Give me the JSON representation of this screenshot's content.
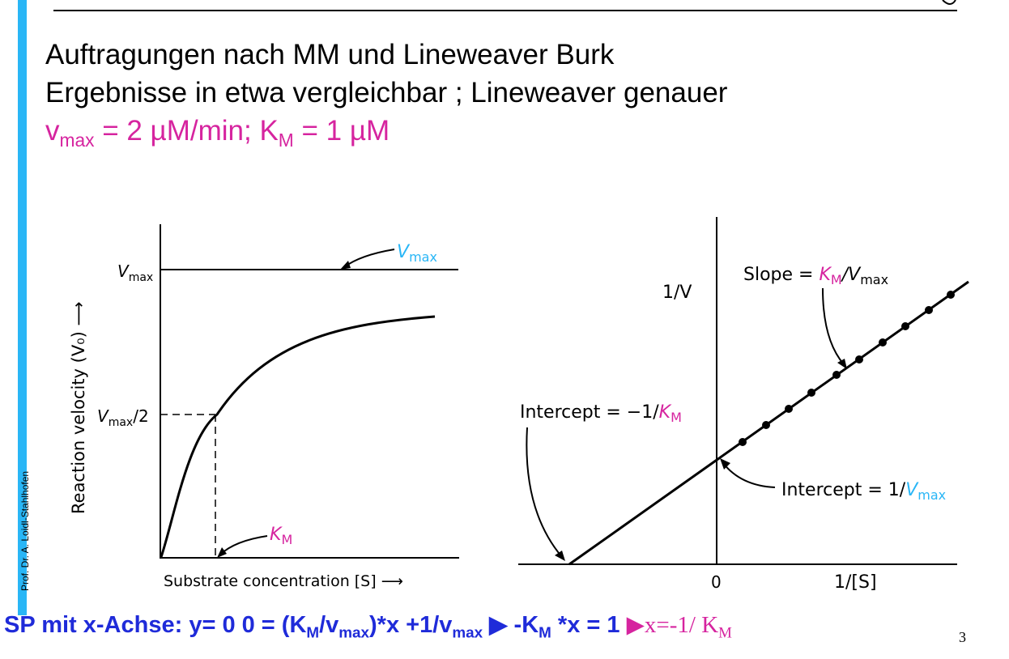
{
  "slide": {
    "credit": "Prof. Dr. A. Loidl-Stahlhofen",
    "title_line1": "Auftragungen nach MM und Lineweaver Burk",
    "title_line2": "Ergebnisse in etwa vergleichbar ; Lineweaver genauer",
    "params": {
      "v": "v",
      "v_sub": "max",
      "v_rest": " = 2 µM/min; K",
      "k_sub": "M",
      "k_rest": " = 1 µM"
    },
    "page_number": "3"
  },
  "mm_plot": {
    "ylabel": "Reaction velocity (V₀) ⟶",
    "xlabel": "Substrate concentration [S] ⟶",
    "tick_vmax": "V",
    "tick_vmax_sub": "max",
    "tick_vmax_half_a": "V",
    "tick_vmax_half_sub": "max",
    "tick_vmax_half_b": "/2",
    "annot_vmax": "V",
    "annot_vmax_sub": "max",
    "annot_km": "K",
    "annot_km_sub": "M"
  },
  "lb_plot": {
    "ylabel": "1/V",
    "xlabel": "1/[S]",
    "origin": "0",
    "slope_a": "Slope = ",
    "slope_k": "K",
    "slope_k_sub": "M",
    "slope_slash": "/V",
    "slope_v_sub": "max",
    "xint_a": "Intercept = −1/",
    "xint_k": "K",
    "xint_k_sub": "M",
    "yint_a": "Intercept = 1/",
    "yint_v": "V",
    "yint_v_sub": "max"
  },
  "bottom": {
    "eq_a": "SP mit x-Achse: y= 0   0 = (K",
    "eq_a_sub": "M",
    "eq_b": "/v",
    "eq_b_sub": "max",
    "eq_c": ")*x +1/v",
    "eq_c_sub": "max",
    "eq_d": " ▶ -K",
    "eq_d_sub": "M",
    "eq_e": " *x  = 1 ",
    "eq_f": "▶",
    "eq_g": "x=-1/ K",
    "eq_g_sub": "M"
  },
  "colors": {
    "accent_blue": "#29b6f6",
    "magenta": "#d6249f",
    "eq_blue": "#1f2bd9"
  }
}
